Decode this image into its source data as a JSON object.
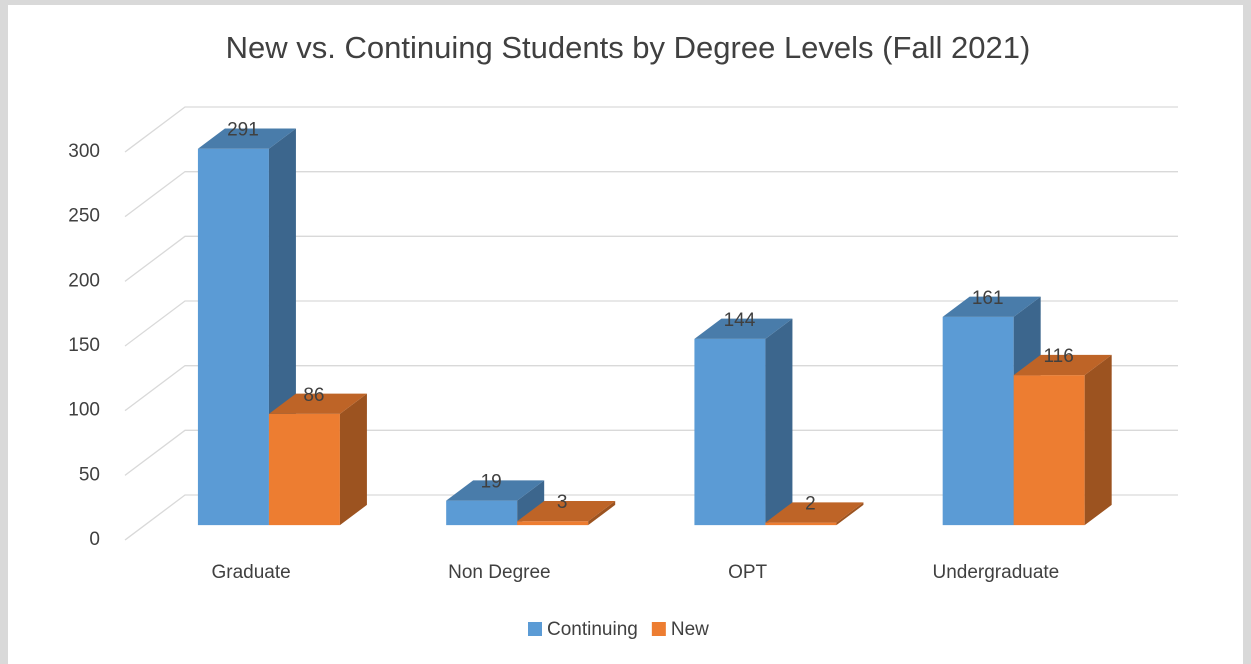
{
  "chart_data": {
    "type": "bar",
    "title": "New vs. Continuing Students by Degree Levels (Fall 2021)",
    "categories": [
      "Graduate",
      "Non Degree",
      "OPT",
      "Undergraduate"
    ],
    "series": [
      {
        "name": "Continuing",
        "color": "#5b9bd5",
        "values": [
          291,
          19,
          144,
          161
        ]
      },
      {
        "name": "New",
        "color": "#ed7d31",
        "values": [
          86,
          3,
          2,
          116
        ]
      }
    ],
    "ylim": [
      0,
      300
    ],
    "yticks": [
      0,
      50,
      100,
      150,
      200,
      250,
      300
    ],
    "grid": true,
    "legend": "bottom"
  }
}
